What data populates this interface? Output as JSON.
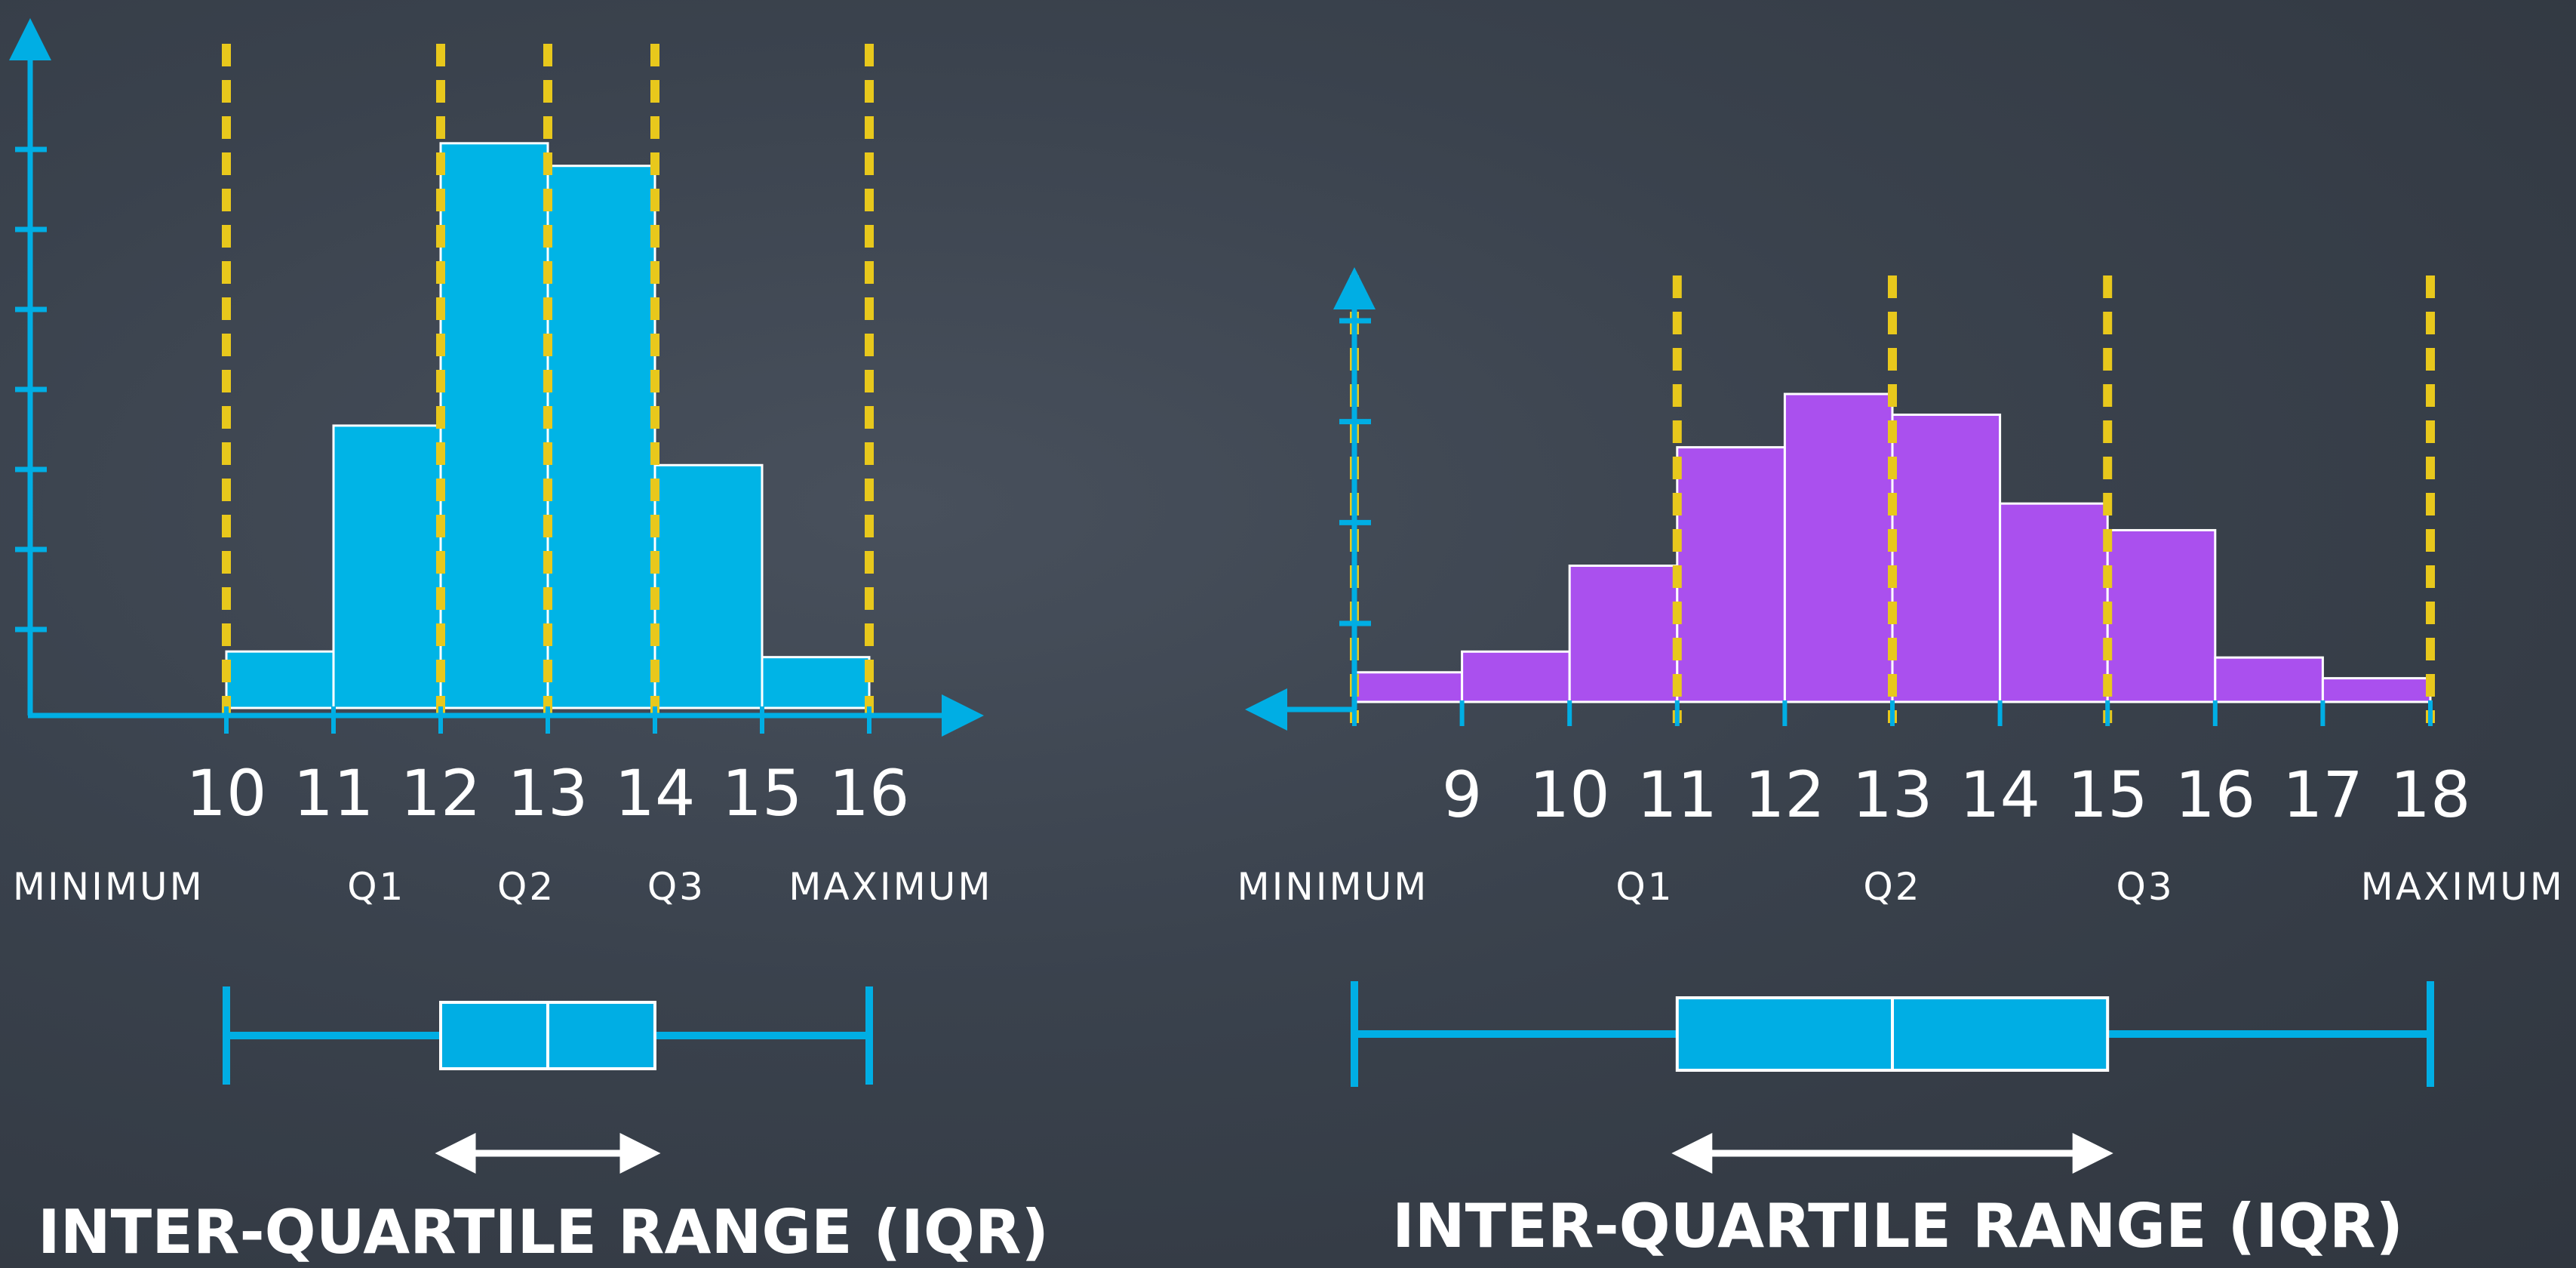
{
  "colors": {
    "axis": "#00aee4",
    "bar_left": "#00b4e6",
    "bar_right": "#aa50ee",
    "bar_edge": "#ffffff",
    "quartile_line": "#e8c81c",
    "box": "#00aee4",
    "arrow": "#ffffff"
  },
  "chart_data": [
    {
      "type": "histogram",
      "x": [
        10,
        11,
        12,
        13,
        14,
        15,
        16
      ],
      "bins": [
        10,
        11,
        12,
        13,
        14,
        15,
        16
      ],
      "values": [
        1,
        5,
        10,
        9.6,
        4.3,
        0.9
      ],
      "ylim": [
        0,
        11
      ],
      "y_tick_count": 7,
      "quartiles": {
        "minimum": 10,
        "q1": 12,
        "q2": 13,
        "q3": 14,
        "maximum": 16
      },
      "stat_labels": [
        {
          "text": "MINIMUM",
          "at": 8.9
        },
        {
          "text": "Q1",
          "at": 11.4
        },
        {
          "text": "Q2",
          "at": 12.8
        },
        {
          "text": "Q3",
          "at": 14.2
        },
        {
          "text": "MAXIMUM",
          "at": 16.2
        }
      ],
      "title": "INTER-QUARTILE RANGE (IQR)"
    },
    {
      "type": "histogram",
      "x": [
        9,
        10,
        11,
        12,
        13,
        14,
        15,
        16,
        17,
        18
      ],
      "bins": [
        8,
        9,
        10,
        11,
        12,
        13,
        14,
        15,
        16,
        17,
        18
      ],
      "values": [
        1,
        1.7,
        4.6,
        8.6,
        10.4,
        9.7,
        6.7,
        5.8,
        1.5,
        0.8
      ],
      "ylim": [
        0,
        13
      ],
      "y_tick_count": 4,
      "quartiles": {
        "minimum": 8,
        "q1": 11,
        "q2": 13,
        "q3": 15,
        "maximum": 18
      },
      "stat_labels": [
        {
          "text": "MINIMUM",
          "at": 7.8
        },
        {
          "text": "Q1",
          "at": 10.7
        },
        {
          "text": "Q2",
          "at": 13.0
        },
        {
          "text": "Q3",
          "at": 15.35
        },
        {
          "text": "MAXIMUM",
          "at": 18.3
        }
      ],
      "title": "INTER-QUARTILE RANGE (IQR)"
    }
  ]
}
